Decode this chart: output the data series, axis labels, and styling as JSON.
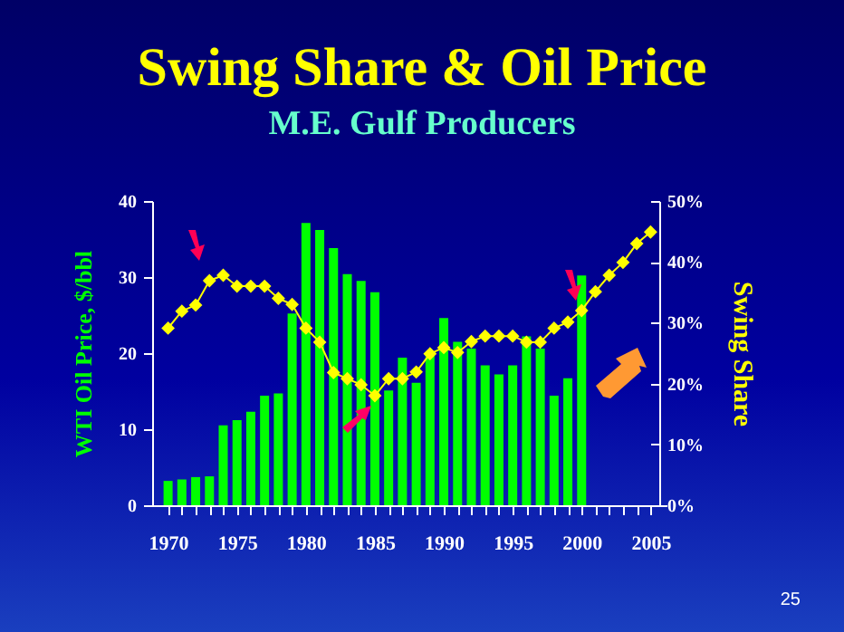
{
  "chart_data": {
    "type": "bar",
    "title": "Swing Share & Oil Price",
    "subtitle": "M.E. Gulf Producers",
    "ylabel": "WTI Oil Price, $/bbl",
    "y2label": "Swing Share",
    "x": [
      1970,
      1971,
      1972,
      1973,
      1974,
      1975,
      1976,
      1977,
      1978,
      1979,
      1980,
      1981,
      1982,
      1983,
      1984,
      1985,
      1986,
      1987,
      1988,
      1989,
      1990,
      1991,
      1992,
      1993,
      1994,
      1995,
      1996,
      1997,
      1998,
      1999,
      2000,
      2001,
      2002,
      2003,
      2004,
      2005
    ],
    "series": [
      {
        "color": "#00ff00",
        "values": [
          3.2,
          3.4,
          3.7,
          3.8,
          10.5,
          11.2,
          12.3,
          14.4,
          14.7,
          25.2,
          37.1,
          36.2,
          33.8,
          30.4,
          29.5,
          28.0,
          15.1,
          19.4,
          16.1,
          19.8,
          24.6,
          21.5,
          20.6,
          18.4,
          17.2,
          18.4,
          22.2,
          20.6,
          14.4,
          16.7,
          30.2,
          null,
          null,
          null,
          null,
          null
        ]
      },
      {
        "type": "line",
        "axis": "y2",
        "color": "#ffff00",
        "marker": "diamond",
        "values": [
          29.1,
          31.9,
          32.9,
          36.9,
          37.8,
          36.0,
          36.0,
          36.0,
          34.0,
          33.0,
          29.1,
          26.8,
          21.8,
          20.8,
          19.8,
          18.0,
          20.8,
          20.8,
          21.9,
          24.9,
          25.9,
          25.1,
          26.9,
          27.8,
          27.8,
          27.8,
          26.8,
          26.8,
          29.1,
          30.1,
          32.0,
          35.1,
          37.8,
          39.9,
          43.0,
          44.9
        ]
      }
    ],
    "xlim": [
      1969.5,
      2005.5
    ],
    "xticks": [
      1970,
      {
        "value": 1971,
        "label": null
      },
      {
        "value": 1972,
        "label": null
      },
      {
        "value": 1973,
        "label": null
      },
      {
        "value": 1974,
        "label": null
      },
      1975,
      {
        "value": 1976,
        "label": null
      },
      {
        "value": 1977,
        "label": null
      },
      {
        "value": 1978,
        "label": null
      },
      {
        "value": 1979,
        "label": null
      },
      1980,
      {
        "value": 1981,
        "label": null
      },
      {
        "value": 1982,
        "label": null
      },
      {
        "value": 1983,
        "label": null
      },
      {
        "value": 1984,
        "label": null
      },
      1985,
      {
        "value": 1986,
        "label": null
      },
      {
        "value": 1987,
        "label": null
      },
      {
        "value": 1988,
        "label": null
      },
      {
        "value": 1989,
        "label": null
      },
      1990,
      {
        "value": 1991,
        "label": null
      },
      {
        "value": 1992,
        "label": null
      },
      {
        "value": 1993,
        "label": null
      },
      {
        "value": 1994,
        "label": null
      },
      1995,
      {
        "value": 1996,
        "label": null
      },
      {
        "value": 1997,
        "label": null
      },
      {
        "value": 1998,
        "label": null
      },
      {
        "value": 1999,
        "label": null
      },
      2000,
      {
        "value": 2001,
        "label": null
      },
      {
        "value": 2002,
        "label": null
      },
      {
        "value": 2003,
        "label": null
      },
      {
        "value": 2004,
        "label": null
      },
      2005
    ],
    "ylim": [
      0,
      40
    ],
    "yticks": [
      0,
      10,
      20,
      30,
      40
    ],
    "y2lim": [
      0,
      50
    ],
    "y2ticks": [
      {
        "value": 0,
        "label": "0%"
      },
      {
        "value": 10,
        "label": "10%"
      },
      {
        "value": 20,
        "label": "20%"
      },
      {
        "value": 30,
        "label": "30%"
      },
      {
        "value": 40,
        "label": "40%"
      },
      {
        "value": 50,
        "label": "50%"
      }
    ],
    "annotations": [
      "25"
    ],
    "grid": false
  }
}
